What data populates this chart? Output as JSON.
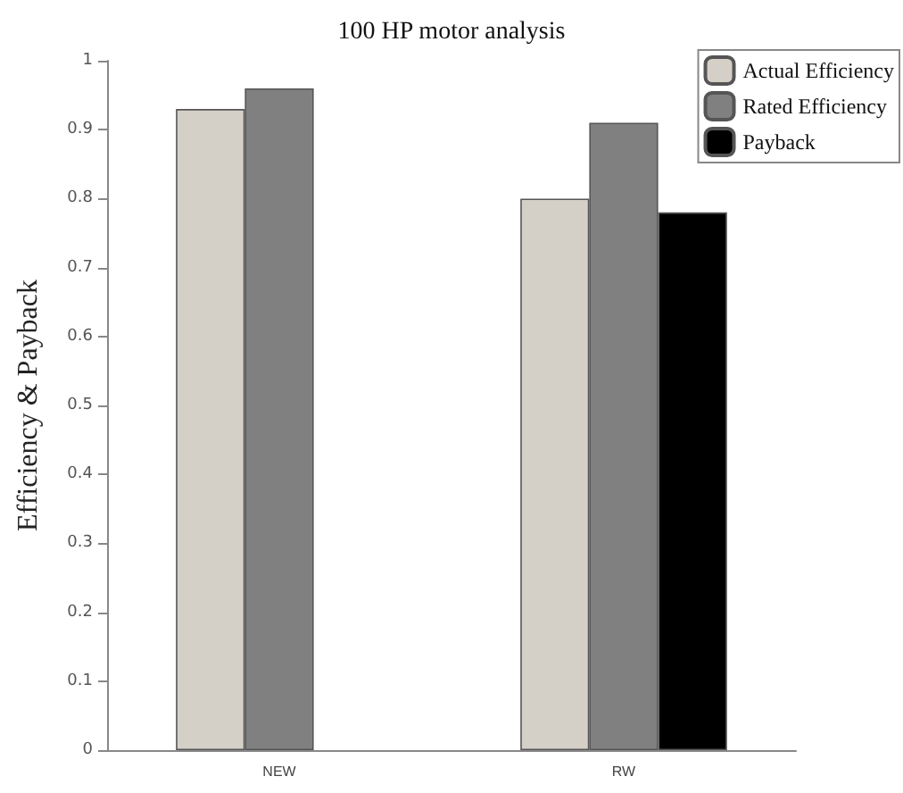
{
  "chart_data": {
    "type": "bar",
    "title": "100 HP motor analysis",
    "ylabel": "Efficiency & Payback",
    "categories": [
      "NEW",
      "RW"
    ],
    "series": [
      {
        "name": "Actual Efficiency",
        "color": "#d4d0c8",
        "values": [
          0.93,
          0.8
        ]
      },
      {
        "name": "Rated Efficiency",
        "color": "#808080",
        "values": [
          0.96,
          0.91
        ]
      },
      {
        "name": "Payback",
        "color": "#000000",
        "values": [
          null,
          0.78
        ]
      }
    ],
    "ylim": [
      0,
      1
    ],
    "yticks": [
      0,
      0.1,
      0.2,
      0.3,
      0.4,
      0.5,
      0.6,
      0.7,
      0.8,
      0.9,
      1
    ],
    "grid": false,
    "legend": "top right"
  }
}
